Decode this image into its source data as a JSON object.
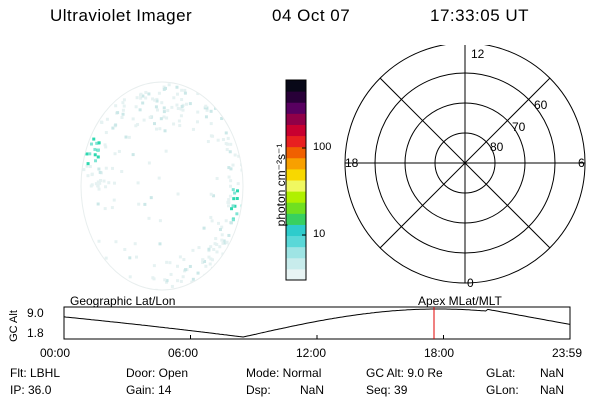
{
  "header": {
    "title": "Ultraviolet Imager",
    "date": "04 Oct 07",
    "time": "17:33:05 UT"
  },
  "colorbar": {
    "unit": "photon cm⁻²s⁻¹",
    "ticks": [
      "100",
      "10"
    ],
    "colors": [
      "#e8f4f4",
      "#c8ecec",
      "#9ee4e4",
      "#5ad8d8",
      "#2ecccc",
      "#38d060",
      "#70e020",
      "#b0f000",
      "#f0f860",
      "#f8d800",
      "#f8a000",
      "#f06000",
      "#e82020",
      "#c80030",
      "#900048",
      "#580060",
      "#280038",
      "#080818"
    ]
  },
  "polar": {
    "mlt_labels": {
      "top": "12",
      "bottom": "0",
      "left": "18",
      "right": "6"
    },
    "lat_labels": [
      "60",
      "70",
      "80"
    ]
  },
  "timeline": {
    "left_title": "Geographic Lat/Lon",
    "right_title": "Apex  MLat/MLT",
    "y_label": "GC Alt",
    "y_ticks": [
      "9.0",
      "1.8"
    ],
    "x_ticks": [
      "00:00",
      "06:00",
      "12:00",
      "18:00",
      "23:59"
    ],
    "current_marker_hour": 17.55,
    "marker_color": "#e00000"
  },
  "status": {
    "filter": "Flt: LBHL",
    "ip": "IP: 36.0",
    "door": "Door: Open",
    "gain": "Gain: 14",
    "mode": "Mode: Normal",
    "dsp_label": "Dsp:",
    "dsp_value": "NaN",
    "gc_alt": "GC Alt: 9.0 Re",
    "seq": "Seq: 39",
    "glat_label": "GLat:",
    "glat_value": "NaN",
    "glon_label": "GLon:",
    "glon_value": "NaN"
  }
}
